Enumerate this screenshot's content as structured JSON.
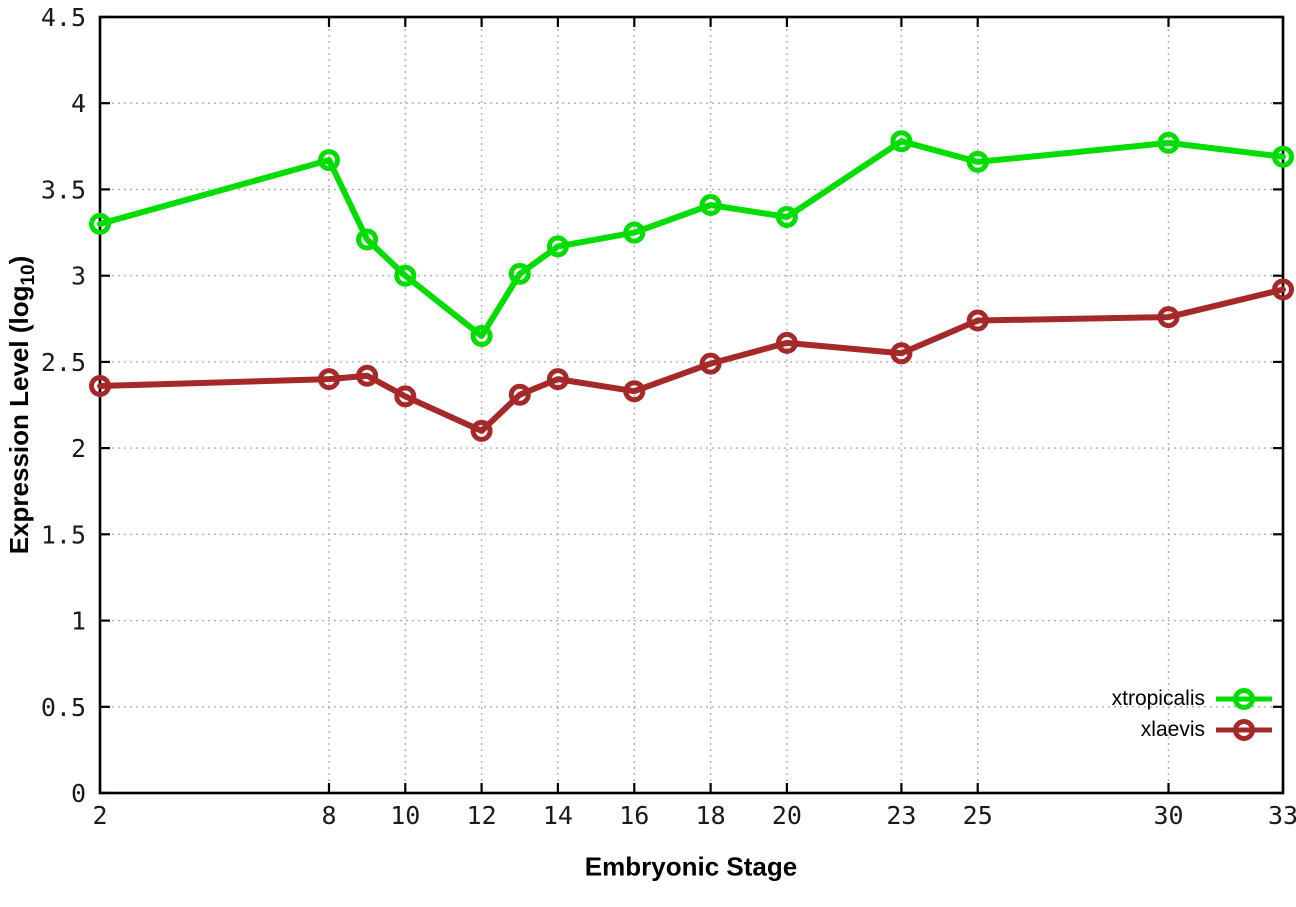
{
  "chart_data": {
    "type": "line",
    "title": "",
    "xlabel": "Embryonic Stage",
    "ylabel": "Expression Level (log10)",
    "ylabel_parts": {
      "pre": "Expression Level (log",
      "sub": "10",
      "post": ")"
    },
    "x": [
      2,
      8,
      9,
      10,
      12,
      13,
      14,
      16,
      18,
      20,
      23,
      25,
      30,
      33
    ],
    "series": [
      {
        "name": "xtropicalis",
        "color": "#00dd00",
        "marker": "open-circle",
        "values": [
          3.3,
          3.67,
          3.21,
          3.0,
          2.65,
          3.01,
          3.17,
          3.25,
          3.41,
          3.34,
          3.78,
          3.66,
          3.77,
          3.69
        ]
      },
      {
        "name": "xlaevis",
        "color": "#a62929",
        "marker": "open-circle",
        "values": [
          2.36,
          2.4,
          2.42,
          2.3,
          2.1,
          2.31,
          2.4,
          2.33,
          2.49,
          2.61,
          2.55,
          2.74,
          2.76,
          2.92
        ]
      }
    ],
    "xticks": [
      2,
      8,
      10,
      12,
      14,
      16,
      18,
      20,
      23,
      25,
      30,
      33
    ],
    "yticks": [
      0,
      0.5,
      1,
      1.5,
      2,
      2.5,
      3,
      3.5,
      4,
      4.5
    ],
    "xlim": [
      2,
      33
    ],
    "ylim": [
      0,
      4.5
    ],
    "grid": true,
    "legend_position": "bottom-right",
    "background_color": "#ffffff",
    "grid_color": "#b0b0b0",
    "axis_color": "#000000"
  }
}
